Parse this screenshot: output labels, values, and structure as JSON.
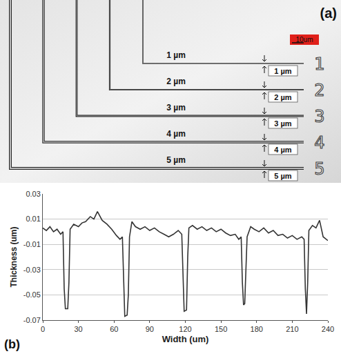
{
  "panel_a": {
    "label": "(a)",
    "scale_bar": "10um",
    "lines": [
      {
        "width": 1,
        "label": "1 µm",
        "box_label": "1 µm",
        "number": "1"
      },
      {
        "width": 2,
        "label": "2 µm",
        "box_label": "2 µm",
        "number": "2"
      },
      {
        "width": 3,
        "label": "3 µm",
        "box_label": "3 µm",
        "number": "3"
      },
      {
        "width": 4,
        "label": "4 µm",
        "box_label": "4 µm",
        "number": "4"
      },
      {
        "width": 5,
        "label": "5 µm",
        "box_label": "5 µm",
        "number": "5"
      }
    ]
  },
  "chart_data": {
    "type": "line",
    "panel_label": "(b)",
    "x_label": "Width (um)",
    "y_label": "Thickness (um)",
    "x": [
      0,
      3,
      6,
      9,
      12,
      15,
      17,
      18,
      19,
      21,
      22,
      23,
      26,
      30,
      33,
      36,
      40,
      43,
      46,
      50,
      54,
      58,
      62,
      65,
      67,
      68,
      69,
      71,
      72,
      73,
      75,
      78,
      82,
      86,
      90,
      94,
      98,
      102,
      106,
      110,
      114,
      117,
      118,
      119,
      121,
      122,
      123,
      126,
      130,
      134,
      138,
      142,
      146,
      150,
      154,
      158,
      162,
      165,
      167,
      168,
      169,
      170,
      171,
      172,
      175,
      178,
      182,
      186,
      190,
      194,
      198,
      202,
      206,
      210,
      214,
      218,
      220,
      221,
      222,
      223,
      224,
      227,
      230,
      233,
      236,
      240
    ],
    "values": [
      0.003,
      0.001,
      0.004,
      0.0,
      0.002,
      -0.002,
      0.0,
      -0.045,
      -0.061,
      -0.061,
      -0.04,
      0.002,
      0.006,
      0.004,
      0.007,
      0.008,
      0.012,
      0.01,
      0.016,
      0.009,
      0.006,
      0.002,
      -0.003,
      -0.006,
      -0.004,
      -0.03,
      -0.067,
      -0.066,
      -0.05,
      -0.004,
      0.008,
      0.004,
      0.002,
      0.004,
      0.001,
      0.003,
      0.0,
      -0.002,
      -0.004,
      -0.002,
      0.001,
      -0.002,
      -0.03,
      -0.063,
      -0.062,
      -0.02,
      0.003,
      0.005,
      0.002,
      0.004,
      0.001,
      0.003,
      0.0,
      0.002,
      -0.001,
      -0.003,
      -0.002,
      -0.006,
      -0.004,
      -0.04,
      -0.058,
      -0.057,
      -0.03,
      -0.004,
      0.004,
      0.002,
      0.0,
      0.003,
      -0.001,
      0.001,
      -0.003,
      -0.002,
      -0.005,
      -0.003,
      -0.006,
      -0.004,
      -0.006,
      -0.045,
      -0.065,
      -0.04,
      0.001,
      0.005,
      0.003,
      0.009,
      -0.004,
      -0.007
    ],
    "color": "#333333",
    "xlim": [
      0,
      240
    ],
    "xticks": [
      0,
      30,
      60,
      90,
      120,
      150,
      180,
      210,
      240
    ],
    "ylim": [
      -0.07,
      0.03
    ],
    "yticks": [
      -0.07,
      -0.05,
      -0.03,
      -0.01,
      0.01,
      0.03
    ],
    "grid": true
  }
}
